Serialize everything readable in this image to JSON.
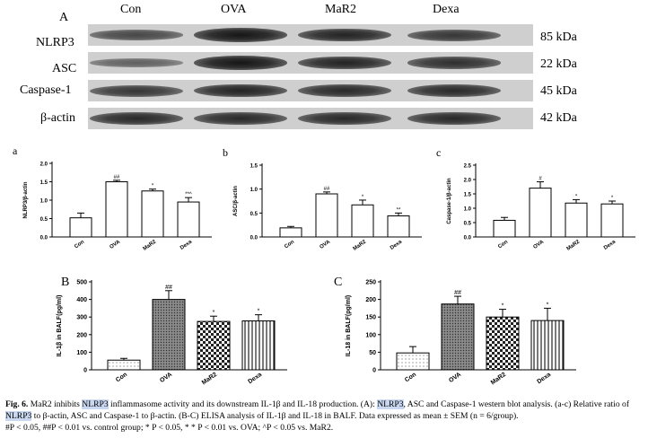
{
  "western_blot": {
    "panel": "A",
    "lanes": [
      "Con",
      "OVA",
      "MaR2",
      "Dexa"
    ],
    "rows": [
      {
        "name": "NLRP3",
        "kda": "85 kDa",
        "intensity": [
          0.55,
          0.95,
          0.85,
          0.7
        ]
      },
      {
        "name": "ASC",
        "kda": "22 kDa",
        "intensity": [
          0.35,
          0.95,
          0.85,
          0.75
        ]
      },
      {
        "name": "Caspase-1",
        "kda": "45 kDa",
        "intensity": [
          0.7,
          0.85,
          0.8,
          0.8
        ]
      },
      {
        "name": "β-actin",
        "kda": "42 kDa",
        "intensity": [
          0.8,
          0.8,
          0.8,
          0.8
        ]
      }
    ]
  },
  "chart_data": [
    {
      "panel": "a",
      "type": "bar",
      "categories": [
        "Con",
        "OVA",
        "MaR2",
        "Dexa"
      ],
      "values": [
        0.52,
        1.5,
        1.25,
        0.95
      ],
      "errors": [
        0.13,
        0.04,
        0.05,
        0.12
      ],
      "annotations": [
        "",
        "##",
        "*",
        "**^"
      ],
      "ylabel": "NLRP3/β-actin",
      "ylim": [
        0,
        2.0
      ],
      "yticks": [
        "0.0",
        "0.5",
        "1.0",
        "1.5",
        "2.0"
      ]
    },
    {
      "panel": "b",
      "type": "bar",
      "categories": [
        "Con",
        "OVA",
        "MaR2",
        "Dexa"
      ],
      "values": [
        0.19,
        0.9,
        0.67,
        0.44
      ],
      "errors": [
        0.03,
        0.04,
        0.1,
        0.06
      ],
      "annotations": [
        "",
        "##",
        "*",
        "**"
      ],
      "ylabel": "ASC/β-actin",
      "ylim": [
        0,
        1.5
      ],
      "yticks": [
        "0.0",
        "0.5",
        "1.0",
        "1.5"
      ]
    },
    {
      "panel": "c",
      "type": "bar",
      "categories": [
        "Con",
        "OVA",
        "MaR2",
        "Dexa"
      ],
      "values": [
        0.58,
        1.7,
        1.18,
        1.15
      ],
      "errors": [
        0.1,
        0.22,
        0.12,
        0.1
      ],
      "annotations": [
        "",
        "#",
        "*",
        "*"
      ],
      "ylabel": "Caspase-1/β-actin",
      "ylim": [
        0,
        2.5
      ],
      "yticks": [
        "0.0",
        "0.5",
        "1.0",
        "1.5",
        "2.0",
        "2.5"
      ]
    },
    {
      "panel": "B",
      "type": "bar",
      "categories": [
        "Con",
        "OVA",
        "MaR2",
        "Dexa"
      ],
      "values": [
        55,
        400,
        275,
        278
      ],
      "errors": [
        10,
        50,
        30,
        35
      ],
      "annotations": [
        "",
        "##",
        "*",
        "*"
      ],
      "ylabel": "IL-1β in BALF(pg/ml)",
      "ylim": [
        0,
        500
      ],
      "yticks": [
        "0",
        "100",
        "200",
        "300",
        "400",
        "500"
      ]
    },
    {
      "panel": "C",
      "type": "bar",
      "categories": [
        "Con",
        "OVA",
        "MaR2",
        "Dexa"
      ],
      "values": [
        48,
        187,
        150,
        140
      ],
      "errors": [
        18,
        22,
        22,
        35
      ],
      "annotations": [
        "",
        "##",
        "*",
        "*"
      ],
      "ylabel": "IL-18 in BALF(pg/ml)",
      "ylim": [
        0,
        250
      ],
      "yticks": [
        "0",
        "50",
        "100",
        "150",
        "200",
        "250"
      ]
    }
  ],
  "caption": {
    "label": "Fig. 6.",
    "t1": " MaR2 inhibits ",
    "hl1": "NLRP3",
    "t2": " inflammasome activity and its downstream IL-1β and IL-18 production. (A): ",
    "hl2": "NLRP3",
    "t3": ", ASC and Caspase-1 western blot analysis. (a-c) Relative ratio of ",
    "hl3": "NLRP3",
    "t4": " to β-actin, ASC and Caspase-1 to β-actin. (B-C) ELISA analysis of IL-1β and IL-18 in BALF. Data expressed as mean ± SEM (n = 6/group).",
    "t5": "#P < 0.05, ##P < 0.01 vs. control group; * P < 0.05, * * P < 0.01 vs. OVA; ^P < 0.05 vs. MaR2."
  }
}
